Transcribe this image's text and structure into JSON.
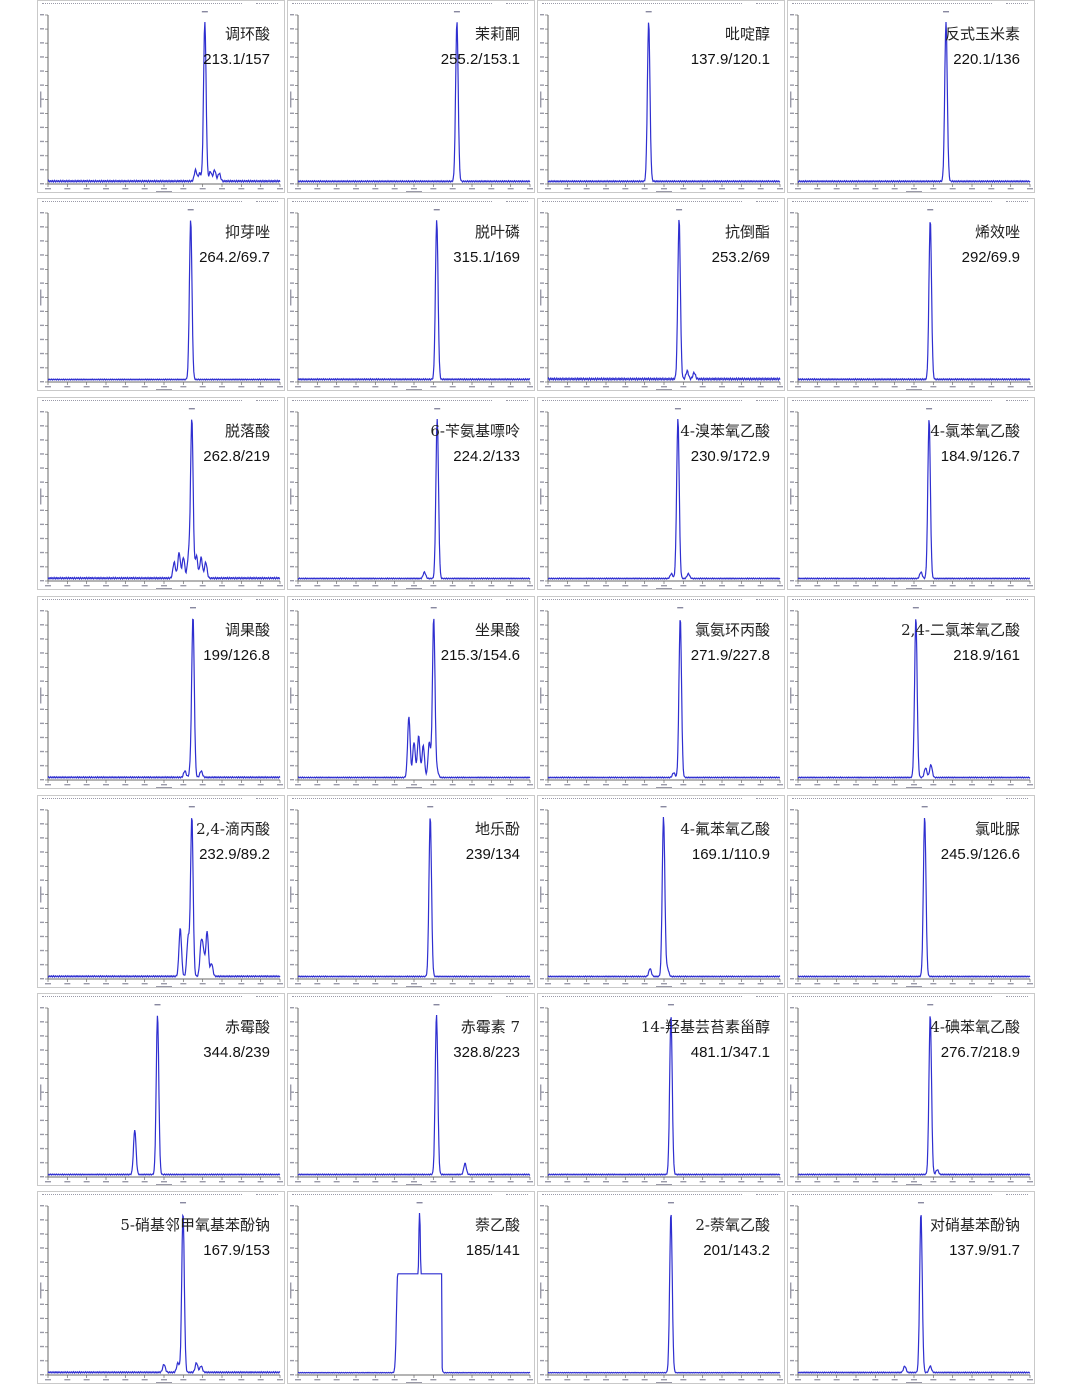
{
  "chart_data": [
    {
      "type": "line",
      "name": "调环酸",
      "transition": "213.1/157",
      "peaks": [
        [
          0.636,
          0.07
        ],
        [
          0.654,
          0.05
        ],
        [
          0.676,
          1.0
        ],
        [
          0.7,
          0.06
        ],
        [
          0.718,
          0.07
        ],
        [
          0.738,
          0.05
        ]
      ],
      "noise": 0.01
    },
    {
      "type": "line",
      "name": "茉莉酮",
      "transition": "255.2/153.1",
      "peaks": [
        [
          0.685,
          1.0
        ]
      ],
      "noise": 0.008
    },
    {
      "type": "line",
      "name": "吡啶醇",
      "transition": "137.9/120.1",
      "peaks": [
        [
          0.434,
          1.0
        ]
      ],
      "noise": 0.008
    },
    {
      "type": "line",
      "name": "反式玉米素",
      "transition": "220.1/136",
      "peaks": [
        [
          0.638,
          1.0
        ]
      ],
      "noise": 0.008
    },
    {
      "type": "line",
      "name": "抑芽唑",
      "transition": "264.2/69.7",
      "peaks": [
        [
          0.615,
          1.0
        ]
      ],
      "noise": 0.006
    },
    {
      "type": "line",
      "name": "脱叶磷",
      "transition": "315.1/169",
      "peaks": [
        [
          0.598,
          1.0
        ]
      ],
      "noise": 0.008
    },
    {
      "type": "line",
      "name": "抗倒酯",
      "transition": "253.2/69",
      "peaks": [
        [
          0.565,
          1.0
        ],
        [
          0.6,
          0.05
        ],
        [
          0.63,
          0.04
        ]
      ],
      "noise": 0.012
    },
    {
      "type": "line",
      "name": "烯效唑",
      "transition": "292/69.9",
      "peaks": [
        [
          0.57,
          1.0
        ]
      ],
      "noise": 0.008
    },
    {
      "type": "line",
      "name": "脱落酸",
      "transition": "262.8/219",
      "peaks": [
        [
          0.544,
          0.1
        ],
        [
          0.565,
          0.16
        ],
        [
          0.584,
          0.13
        ],
        [
          0.606,
          0.14
        ],
        [
          0.62,
          1.0
        ],
        [
          0.64,
          0.14
        ],
        [
          0.66,
          0.13
        ],
        [
          0.68,
          0.1
        ]
      ],
      "noise": 0.01
    },
    {
      "type": "line",
      "name": "6-苄氨基嘌呤",
      "transition": "224.2/133",
      "peaks": [
        [
          0.545,
          0.04
        ],
        [
          0.6,
          1.0
        ]
      ],
      "noise": 0.006
    },
    {
      "type": "line",
      "name": "4-溴苯氧乙酸",
      "transition": "230.9/172.9",
      "peaks": [
        [
          0.532,
          0.03
        ],
        [
          0.56,
          1.0
        ],
        [
          0.605,
          0.03
        ]
      ],
      "noise": 0.006
    },
    {
      "type": "line",
      "name": "4-氯苯氧乙酸",
      "transition": "184.9/126.7",
      "peaks": [
        [
          0.53,
          0.04
        ],
        [
          0.565,
          1.0
        ]
      ],
      "noise": 0.006
    },
    {
      "type": "line",
      "name": "调果酸",
      "transition": "199/126.8",
      "peaks": [
        [
          0.59,
          0.04
        ],
        [
          0.615,
          0.05
        ],
        [
          0.625,
          1.0
        ],
        [
          0.66,
          0.04
        ]
      ],
      "noise": 0.008
    },
    {
      "type": "line",
      "name": "坐果酸",
      "transition": "215.3/154.6",
      "peaks": [
        [
          0.478,
          0.38
        ],
        [
          0.5,
          0.22
        ],
        [
          0.52,
          0.26
        ],
        [
          0.54,
          0.2
        ],
        [
          0.566,
          0.22
        ],
        [
          0.585,
          1.0
        ],
        [
          0.6,
          0.04
        ]
      ],
      "noise": 0.006
    },
    {
      "type": "line",
      "name": "氯氨环丙酸",
      "transition": "271.9/227.8",
      "peaks": [
        [
          0.542,
          0.03
        ],
        [
          0.57,
          1.0
        ]
      ],
      "noise": 0.006
    },
    {
      "type": "line",
      "name": "2,4-二氯苯氧乙酸",
      "transition": "218.9/161",
      "peaks": [
        [
          0.508,
          1.0
        ],
        [
          0.55,
          0.06
        ],
        [
          0.573,
          0.08
        ]
      ],
      "noise": 0.006
    },
    {
      "type": "line",
      "name": "2,4-滴丙酸",
      "transition": "232.9/89.2",
      "peaks": [
        [
          0.57,
          0.3
        ],
        [
          0.604,
          0.24
        ],
        [
          0.62,
          1.0
        ],
        [
          0.66,
          0.2
        ],
        [
          0.67,
          0.14
        ],
        [
          0.686,
          0.28
        ],
        [
          0.705,
          0.08
        ]
      ],
      "noise": 0.008
    },
    {
      "type": "line",
      "name": "地乐酚",
      "transition": "239/134",
      "peaks": [
        [
          0.57,
          1.0
        ]
      ],
      "noise": 0.006
    },
    {
      "type": "line",
      "name": "4-氟苯氧乙酸",
      "transition": "169.1/110.9",
      "peaks": [
        [
          0.44,
          0.05
        ],
        [
          0.498,
          1.0
        ],
        [
          0.515,
          0.05
        ]
      ],
      "noise": 0.006
    },
    {
      "type": "line",
      "name": "氯吡脲",
      "transition": "245.9/126.6",
      "peaks": [
        [
          0.546,
          1.0
        ]
      ],
      "noise": 0.006
    },
    {
      "type": "line",
      "name": "赤霉酸",
      "transition": "344.8/239",
      "peaks": [
        [
          0.374,
          0.28
        ],
        [
          0.472,
          1.0
        ]
      ],
      "noise": 0.006
    },
    {
      "type": "line",
      "name": "赤霉素 7",
      "transition": "328.8/223",
      "peaks": [
        [
          0.597,
          1.0
        ],
        [
          0.72,
          0.07
        ]
      ],
      "noise": 0.006
    },
    {
      "type": "line",
      "name": "14-羟基芸苔素甾醇",
      "transition": "481.1/347.1",
      "peaks": [
        [
          0.53,
          1.0
        ]
      ],
      "noise": 0.006
    },
    {
      "type": "line",
      "name": "4-碘苯氧乙酸",
      "transition": "276.7/218.9",
      "peaks": [
        [
          0.57,
          1.0
        ],
        [
          0.6,
          0.03
        ]
      ],
      "noise": 0.006
    },
    {
      "type": "line",
      "name": "5-硝基邻甲氧基苯酚钠",
      "transition": "167.9/153",
      "peaks": [
        [
          0.5,
          0.05
        ],
        [
          0.56,
          0.06
        ],
        [
          0.582,
          1.0
        ],
        [
          0.64,
          0.06
        ],
        [
          0.66,
          0.04
        ]
      ],
      "noise": 0.008
    },
    {
      "type": "line",
      "name": "萘乙酸",
      "transition": "185/141",
      "peaks": [
        [
          0.43,
          0.62
        ],
        [
          0.47,
          0.6
        ],
        [
          0.524,
          1.0
        ],
        [
          0.565,
          0.52
        ],
        [
          0.608,
          0.62
        ]
      ],
      "noise": 0.004,
      "plateau": [
        0.42,
        0.62
      ]
    },
    {
      "type": "line",
      "name": "2-萘氧乙酸",
      "transition": "201/143.2",
      "peaks": [
        [
          0.53,
          1.0
        ]
      ],
      "noise": 0.004
    },
    {
      "type": "line",
      "name": "对硝基苯酚钠",
      "transition": "137.9/91.7",
      "peaks": [
        [
          0.46,
          0.04
        ],
        [
          0.53,
          1.0
        ],
        [
          0.57,
          0.04
        ]
      ],
      "noise": 0.006
    }
  ],
  "colors": {
    "trace": "#2f2fd0",
    "axis": "#6a6a6a",
    "border": "#c9c9c9"
  }
}
